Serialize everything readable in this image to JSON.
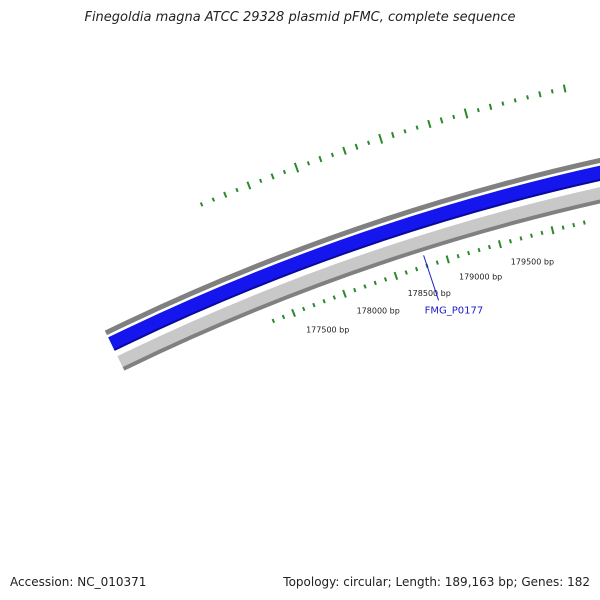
{
  "title": "Finegoldia magna ATCC 29328 plasmid pFMC, complete sequence",
  "footer": {
    "accession": "Accession: NC_010371",
    "summary": "Topology: circular; Length: 189,163 bp; Genes: 182"
  },
  "colors": {
    "forward_strand": "#1515ee",
    "reverse_strand": "#c8c8c8",
    "backbone": "#808080",
    "gc_ticks": "#2a8a2a",
    "gene_label": "#1a1acc"
  },
  "scale_ticks": [
    {
      "bp": 177500,
      "label": "177500 bp"
    },
    {
      "bp": 178000,
      "label": "178000 bp"
    },
    {
      "bp": 178500,
      "label": "178500 bp"
    },
    {
      "bp": 179000,
      "label": "179000 bp"
    },
    {
      "bp": 179500,
      "label": "179500 bp"
    }
  ],
  "genes": [
    {
      "name": "FMG_P0177",
      "label": "FMG_P0177",
      "bp": 178800
    }
  ]
}
